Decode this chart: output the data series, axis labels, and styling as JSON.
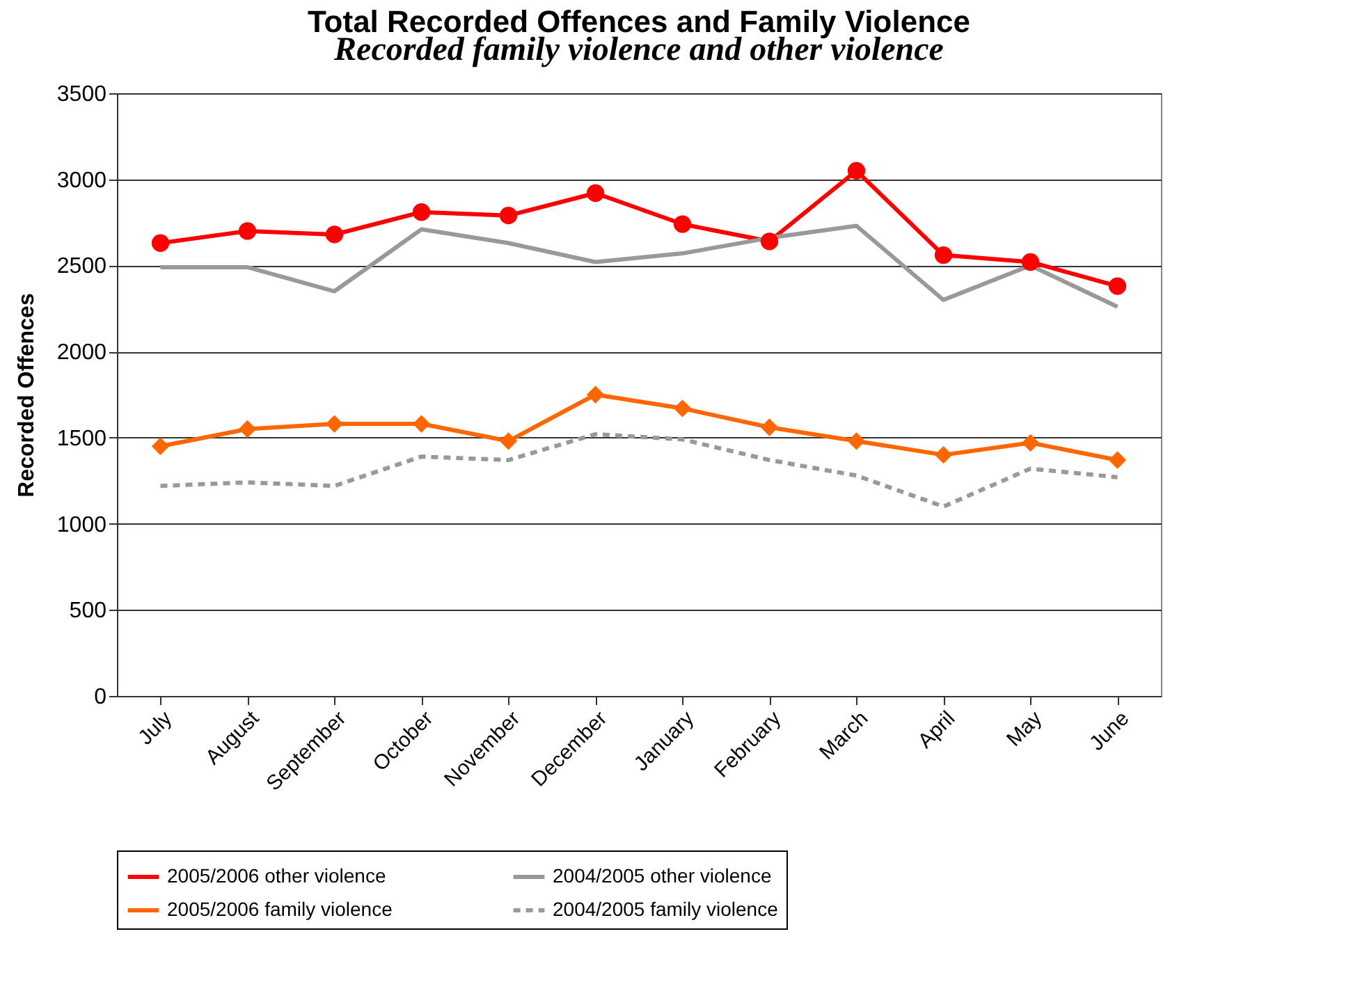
{
  "chart_data": {
    "type": "line",
    "title": "Total Recorded Offences and Family Violence",
    "subtitle": "Recorded family violence and other violence",
    "ylabel": "Recorded Offences",
    "categories": [
      "July",
      "August",
      "September",
      "October",
      "November",
      "December",
      "January",
      "February",
      "March",
      "April",
      "May",
      "June"
    ],
    "ylim": [
      0,
      3500
    ],
    "yticks": [
      0,
      500,
      1000,
      1500,
      2000,
      2500,
      3000,
      3500
    ],
    "grid": "y",
    "legend": "bottom",
    "series": [
      {
        "name": "2005/2006 other violence",
        "color": "#ff0000",
        "marker": "circle",
        "line_style": "solid",
        "values": [
          2630,
          2700,
          2680,
          2810,
          2790,
          2920,
          2740,
          2640,
          3050,
          2560,
          2520,
          2380
        ]
      },
      {
        "name": "2004/2005 other violence",
        "color": "#999999",
        "marker": "none",
        "line_style": "solid",
        "values": [
          2490,
          2490,
          2350,
          2710,
          2630,
          2520,
          2570,
          2660,
          2730,
          2300,
          2500,
          2260
        ]
      },
      {
        "name": "2005/2006 family violence",
        "color": "#ff6600",
        "marker": "diamond",
        "line_style": "solid",
        "values": [
          1450,
          1550,
          1580,
          1580,
          1480,
          1750,
          1670,
          1560,
          1480,
          1400,
          1470,
          1370
        ]
      },
      {
        "name": "2004/2005 family violence",
        "color": "#999999",
        "marker": "none",
        "line_style": "dashed",
        "values": [
          1220,
          1240,
          1220,
          1390,
          1370,
          1520,
          1490,
          1370,
          1280,
          1100,
          1320,
          1270
        ]
      }
    ]
  }
}
